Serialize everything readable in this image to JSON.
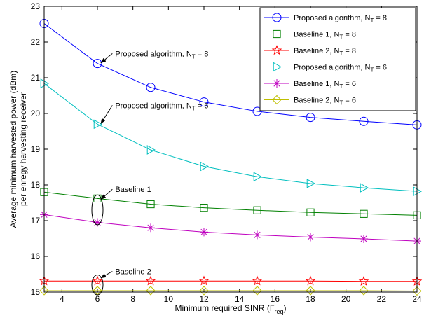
{
  "chart_data": {
    "type": "line",
    "xlabel": "Minimum required SINR (Γ",
    "xlabel_sub": "req",
    "xlabel_end": ")",
    "ylabel_line1": "Average minimum harvested power (dBm)",
    "ylabel_line2": "per enregy harvesting receiver",
    "xlim": [
      3,
      24
    ],
    "ylim": [
      15,
      23
    ],
    "xticks": [
      4,
      6,
      8,
      10,
      12,
      14,
      16,
      18,
      20,
      22,
      24
    ],
    "yticks": [
      15,
      16,
      17,
      18,
      19,
      20,
      21,
      22,
      23
    ],
    "x": [
      3,
      6,
      9,
      12,
      15,
      18,
      21,
      24
    ],
    "legend_position": "top-right",
    "series": [
      {
        "name": "Proposed algorithm, N",
        "sub": "T",
        "suffix": " = 8",
        "color": "#0000ff",
        "marker": "circle",
        "values": [
          22.52,
          21.4,
          20.73,
          20.32,
          20.06,
          19.89,
          19.78,
          19.68
        ]
      },
      {
        "name": "Baseline 1, N",
        "sub": "T",
        "suffix": " = 8",
        "color": "#008000",
        "marker": "square",
        "values": [
          17.8,
          17.62,
          17.46,
          17.36,
          17.29,
          17.23,
          17.19,
          17.15
        ]
      },
      {
        "name": "Baseline 2, N",
        "sub": "T",
        "suffix": " = 8",
        "color": "#ff0000",
        "marker": "star",
        "values": [
          15.31,
          15.31,
          15.31,
          15.31,
          15.31,
          15.31,
          15.3,
          15.3
        ]
      },
      {
        "name": "Proposed algorithm, N",
        "sub": "T",
        "suffix": " = 6",
        "color": "#00bfbf",
        "marker": "triangle-right",
        "values": [
          20.84,
          19.7,
          18.98,
          18.52,
          18.23,
          18.04,
          17.92,
          17.82
        ]
      },
      {
        "name": "Baseline 1, N",
        "sub": "T",
        "suffix": " = 6",
        "color": "#bf00bf",
        "marker": "asterisk",
        "values": [
          17.17,
          16.95,
          16.8,
          16.68,
          16.6,
          16.54,
          16.49,
          16.43
        ]
      },
      {
        "name": "Baseline 2, N",
        "sub": "T",
        "suffix": " = 6",
        "color": "#bfbf00",
        "marker": "diamond",
        "values": [
          15.04,
          15.04,
          15.04,
          15.04,
          15.04,
          15.04,
          15.04,
          15.03
        ]
      }
    ],
    "annotations": [
      {
        "text": "Proposed algorithm, N",
        "sub": "T",
        "suffix": " = 8",
        "text_x": 7.0,
        "text_y": 21.6,
        "arrow_x": 6.2,
        "arrow_y": 21.42
      },
      {
        "text": "Proposed algorithm, N",
        "sub": "T",
        "suffix": " = 6",
        "text_x": 7.0,
        "text_y": 20.15,
        "arrow_x": 6.2,
        "arrow_y": 19.72
      },
      {
        "text": "Baseline 1",
        "sub": "",
        "suffix": "",
        "text_x": 7.0,
        "text_y": 17.8,
        "arrow_x": 6.2,
        "arrow_y": 17.6,
        "ellipse_x": 6,
        "ellipse_y": 17.3,
        "ellipse_ry": 0.42
      },
      {
        "text": "Baseline 2",
        "sub": "",
        "suffix": "",
        "text_x": 7.0,
        "text_y": 15.5,
        "arrow_x": 6.2,
        "arrow_y": 15.4,
        "ellipse_x": 6,
        "ellipse_y": 15.2,
        "ellipse_ry": 0.28
      }
    ]
  }
}
